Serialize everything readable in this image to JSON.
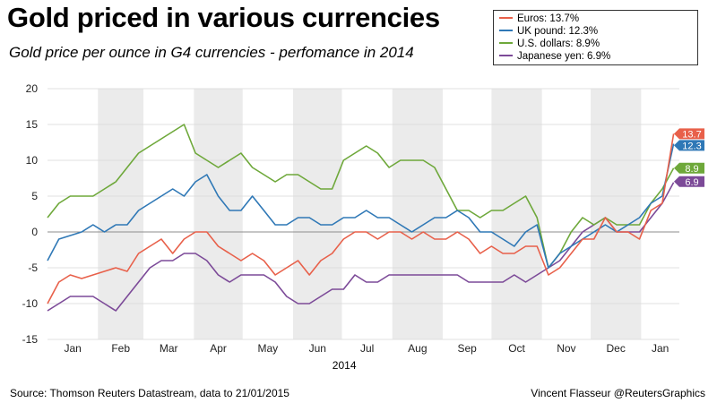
{
  "header": {
    "title": "Gold priced in various currencies",
    "subtitle": "Gold price per ounce in G4 currencies - perfomance in 2014"
  },
  "footer": {
    "source": "Source: Thomson Reuters Datastream, data to 21/01/2015",
    "credit": "Vincent Flasseur @ReutersGraphics"
  },
  "chart_data": {
    "type": "line",
    "title": "Gold priced in various currencies",
    "xlabel": "2014",
    "ylabel": "",
    "ylim": [
      -15,
      20
    ],
    "yticks": [
      -15,
      -10,
      -5,
      0,
      5,
      10,
      15,
      20
    ],
    "grid": true,
    "legend_position": "top-right",
    "month_labels": [
      "Jan",
      "Feb",
      "Mar",
      "Apr",
      "May",
      "Jun",
      "Jul",
      "Aug",
      "Sep",
      "Oct",
      "Nov",
      "Dec",
      "Jan"
    ],
    "x_unit": "weeks since 1 Jan 2014",
    "xlim": [
      0,
      55.5
    ],
    "x": [
      0,
      1,
      2,
      3,
      4,
      5,
      6,
      7,
      8,
      9,
      10,
      11,
      12,
      13,
      14,
      15,
      16,
      17,
      18,
      19,
      20,
      21,
      22,
      23,
      24,
      25,
      26,
      27,
      28,
      29,
      30,
      31,
      32,
      33,
      34,
      35,
      36,
      37,
      38,
      39,
      40,
      41,
      42,
      43,
      44,
      45,
      46,
      47,
      48,
      49,
      50,
      51,
      52,
      53,
      54,
      55.0
    ],
    "series": [
      {
        "name": "Euros",
        "legend_label": "Euros: 13.7%",
        "end_label": "13.7",
        "color": "#e8604a",
        "values": [
          -10,
          -7,
          -6,
          -6.5,
          -6,
          -5.5,
          -5,
          -5.5,
          -3,
          -2,
          -1,
          -3,
          -1,
          0,
          0,
          -2,
          -3,
          -4,
          -3,
          -4,
          -6,
          -5,
          -4,
          -6,
          -4,
          -3,
          -1,
          0,
          0,
          -1,
          0,
          0,
          -1,
          0,
          -1,
          -1,
          0,
          -1,
          -3,
          -2,
          -3,
          -3,
          -2,
          -2,
          -6,
          -5,
          -3,
          -1,
          -1,
          2,
          0,
          0,
          -1,
          3,
          4,
          13.7
        ]
      },
      {
        "name": "UK pound",
        "legend_label": "UK pound: 12.3%",
        "end_label": "12.3",
        "color": "#2f78b6",
        "values": [
          -4,
          -1,
          -0.5,
          0,
          1,
          0,
          1,
          1,
          3,
          4,
          5,
          6,
          5,
          7,
          8,
          5,
          3,
          3,
          5,
          3,
          1,
          1,
          2,
          2,
          1,
          1,
          2,
          2,
          3,
          2,
          2,
          1,
          0,
          1,
          2,
          2,
          3,
          2,
          0,
          0,
          -1,
          -2,
          0,
          1,
          -5,
          -3,
          -2,
          -1,
          0,
          1,
          0,
          1,
          2,
          4,
          5,
          12.3
        ]
      },
      {
        "name": "U.S. dollars",
        "legend_label": "U.S. dollars: 8.9%",
        "end_label": "8.9",
        "color": "#6ea83a",
        "values": [
          2,
          4,
          5,
          5,
          5,
          6,
          7,
          9,
          11,
          12,
          13,
          14,
          15,
          11,
          10,
          9,
          10,
          11,
          9,
          8,
          7,
          8,
          8,
          7,
          6,
          6,
          10,
          11,
          12,
          11,
          9,
          10,
          10,
          10,
          9,
          6,
          3,
          3,
          2,
          3,
          3,
          4,
          5,
          2,
          -5,
          -3,
          0,
          2,
          1,
          2,
          1,
          1,
          1,
          4,
          6,
          8.9
        ]
      },
      {
        "name": "Japanese yen",
        "legend_label": "Japanese yen: 6.9%",
        "end_label": "6.9",
        "color": "#7c4a98",
        "values": [
          -11,
          -10,
          -9,
          -9,
          -9,
          -10,
          -11,
          -9,
          -7,
          -5,
          -4,
          -4,
          -3,
          -3,
          -4,
          -6,
          -7,
          -6,
          -6,
          -6,
          -7,
          -9,
          -10,
          -10,
          -9,
          -8,
          -8,
          -6,
          -7,
          -7,
          -6,
          -6,
          -6,
          -6,
          -6,
          -6,
          -6,
          -7,
          -7,
          -7,
          -7,
          -6,
          -7,
          -6,
          -5,
          -4,
          -2,
          0,
          1,
          2,
          0,
          0,
          0,
          2,
          4,
          6.9
        ]
      }
    ]
  }
}
